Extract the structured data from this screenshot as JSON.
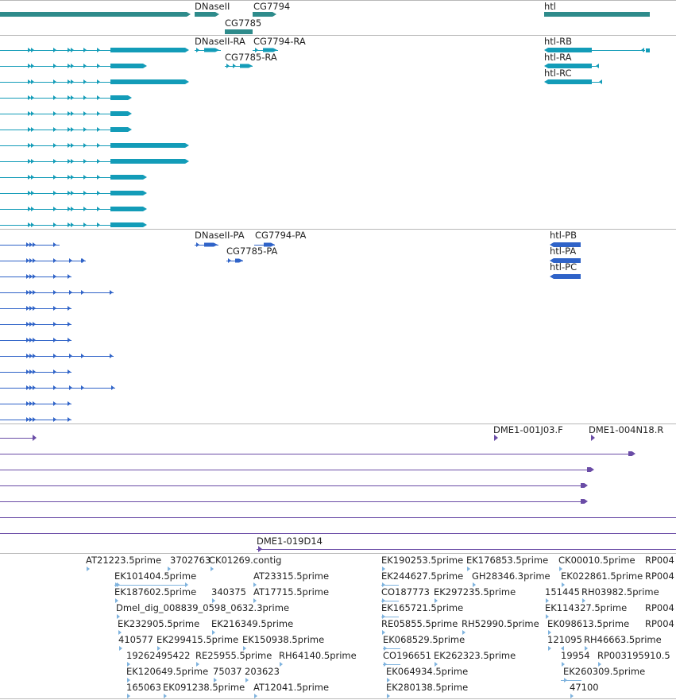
{
  "colors": {
    "gene": "#2e8b8b",
    "mrna": "#139cb8",
    "protein": "#2f63c8",
    "clone": "#6a4ca6",
    "est": "#7fb3de",
    "divider": "#b8b8b8",
    "text": "#222222"
  },
  "tracks": {
    "gene": {
      "labels": [
        "DNaseII",
        "CG7794",
        "CG7785",
        "htl"
      ]
    },
    "mrna": {
      "labels": [
        "DNaseII-RA",
        "CG7794-RA",
        "CG7785-RA",
        "htl-RB",
        "htl-RA",
        "htl-RC"
      ]
    },
    "protein": {
      "labels": [
        "DNaseII-PA",
        "CG7794-PA",
        "CG7785-PA",
        "htl-PB",
        "htl-PA",
        "htl-PC"
      ]
    },
    "clone": {
      "labels": [
        "DME1-001J03.F",
        "DME1-004N18.R",
        "DME1-019D14"
      ]
    },
    "est": {
      "labels": [
        "AT21223.5prime",
        "3702763",
        "CK01269.contig",
        "EK101404.5prime",
        "AT23315.5prime",
        "EK187602.5prime",
        "340375",
        "AT17715.5prime",
        "Dmel_dig_008839_0598_0632.3prime",
        "EK232905.5prime",
        "EK216349.5prime",
        "410577",
        "EK299415.5prime",
        "EK150938.5prime",
        "19262495422",
        "RE25955.5prime",
        "RH64140.5prime",
        "EK120649.5prime",
        "75037",
        "203623",
        "165063",
        "EK091238.5prime",
        "AT12041.5prime",
        "EK190253.5prime",
        "EK176853.5prime",
        "CK00010.5prime",
        "RP004",
        "EK244627.5prime",
        "GH28346.3prime",
        "EK022861.5prime",
        "RP004",
        "CO187773",
        "EK297235.5prime",
        "151445",
        "RH03982.5prime",
        "EK165721.5prime",
        "EK114327.5prime",
        "RP004",
        "RE05855.5prime",
        "RH52990.5prime",
        "EK098613.5prime",
        "RP004",
        "EK068529.5prime",
        "121095",
        "RH46663.5prime",
        "CO196651",
        "EK262323.5prime",
        "19954",
        "RP003195910.5",
        "EK064934.5prime",
        "EK260309.5prime",
        "EK280138.5prime",
        "47100"
      ]
    }
  }
}
